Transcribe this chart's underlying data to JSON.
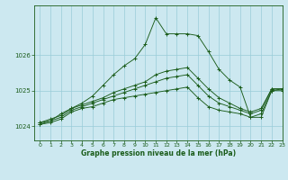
{
  "title": "Graphe pression niveau de la mer (hPa)",
  "bg_color": "#cce8f0",
  "grid_color": "#99ccd9",
  "line_color": "#1a5c1a",
  "xlim": [
    -0.5,
    23
  ],
  "ylim": [
    1023.6,
    1027.4
  ],
  "yticks": [
    1024,
    1025,
    1026
  ],
  "xticks": [
    0,
    1,
    2,
    3,
    4,
    5,
    6,
    7,
    8,
    9,
    10,
    11,
    12,
    13,
    14,
    15,
    16,
    17,
    18,
    19,
    20,
    21,
    22,
    23
  ],
  "hours": [
    0,
    1,
    2,
    3,
    4,
    5,
    6,
    7,
    8,
    9,
    10,
    11,
    12,
    13,
    14,
    15,
    16,
    17,
    18,
    19,
    20,
    21,
    22,
    23
  ],
  "main_line": [
    1024.05,
    1024.15,
    1024.35,
    1024.5,
    1024.65,
    1024.85,
    1025.15,
    1025.45,
    1025.7,
    1025.9,
    1026.3,
    1027.05,
    1026.6,
    1026.6,
    1026.6,
    1026.55,
    1026.1,
    1025.6,
    1025.3,
    1025.1,
    1024.25,
    1024.25,
    1025.0,
    1025.05
  ],
  "line2": [
    1024.05,
    1024.1,
    1024.2,
    1024.4,
    1024.5,
    1024.55,
    1024.65,
    1024.75,
    1024.8,
    1024.85,
    1024.9,
    1024.95,
    1025.0,
    1025.05,
    1025.1,
    1024.8,
    1024.55,
    1024.45,
    1024.4,
    1024.35,
    1024.25,
    1024.35,
    1025.0,
    1025.0
  ],
  "line3": [
    1024.1,
    1024.15,
    1024.25,
    1024.45,
    1024.55,
    1024.65,
    1024.75,
    1024.85,
    1024.95,
    1025.05,
    1025.15,
    1025.25,
    1025.35,
    1025.4,
    1025.45,
    1025.15,
    1024.85,
    1024.65,
    1024.55,
    1024.45,
    1024.35,
    1024.45,
    1025.05,
    1025.05
  ],
  "line4": [
    1024.1,
    1024.2,
    1024.3,
    1024.5,
    1024.6,
    1024.7,
    1024.8,
    1024.95,
    1025.05,
    1025.15,
    1025.25,
    1025.45,
    1025.55,
    1025.6,
    1025.65,
    1025.35,
    1025.05,
    1024.8,
    1024.65,
    1024.5,
    1024.4,
    1024.5,
    1025.05,
    1025.05
  ]
}
